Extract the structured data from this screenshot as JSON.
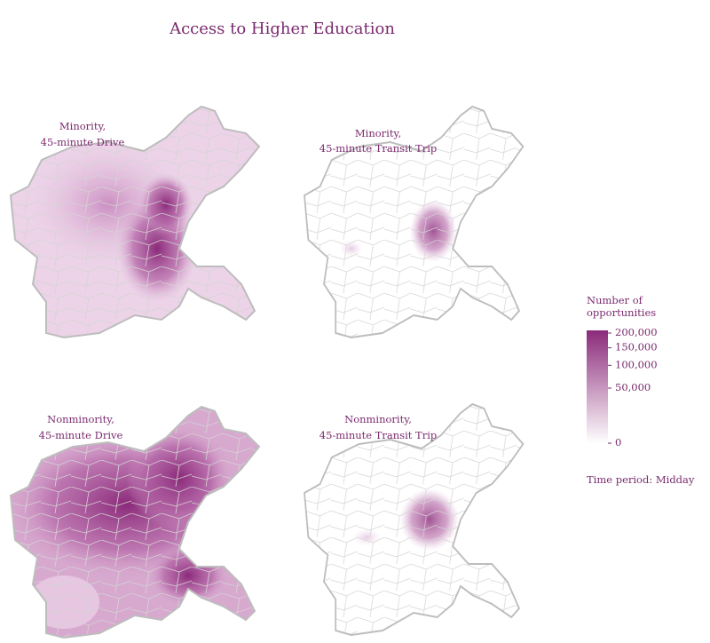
{
  "title": "Access to Higher Education",
  "panels": [
    {
      "label_lines": [
        "Minority,",
        "45-minute Drive"
      ]
    },
    {
      "label_lines": [
        "Minority,",
        "45-minute Transit Trip"
      ]
    },
    {
      "label_lines": [
        "Nonminority,",
        "45-minute Drive"
      ]
    },
    {
      "label_lines": [
        "Nonminority,",
        "45-minute Transit Trip"
      ]
    }
  ],
  "legend": {
    "title_lines": [
      "Number of",
      "opportunities"
    ],
    "scale": "sqrt",
    "lim": [
      0,
      200000
    ],
    "ticks": [
      0,
      {
        "value": 50000,
        "label": "50,000"
      },
      {
        "value": 100000,
        "label": "100,000"
      },
      {
        "value": 150000,
        "label": "150,000"
      },
      {
        "value": 200000,
        "label": "200,000"
      }
    ],
    "colors": [
      "#ffffff",
      "#8b2a7a"
    ]
  },
  "note": "Time period: Midday"
}
